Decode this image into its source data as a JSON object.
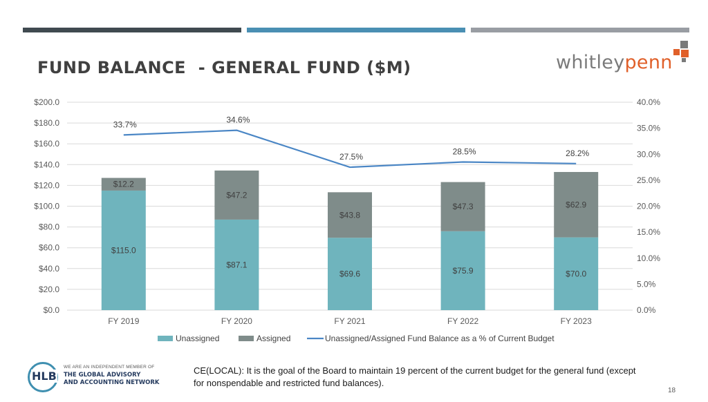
{
  "header": {
    "title": "FUND BALANCE  - GENERAL FUND ($M)",
    "bars": [
      {
        "color": "#404a50"
      },
      {
        "color": "#4a8fb3"
      },
      {
        "color": "#999da3"
      }
    ]
  },
  "logo": {
    "text_part1": "whitley",
    "text_part2": "penn",
    "color_part1": "#7a7a7a",
    "color_part2": "#e0602a",
    "square_colors": [
      "#e0602a",
      "#7a7a7a"
    ]
  },
  "chart_data": {
    "type": "bar",
    "stacked": true,
    "categories": [
      "FY 2019",
      "FY 2020",
      "FY 2021",
      "FY 2022",
      "FY 2023"
    ],
    "series": [
      {
        "name": "Unassigned",
        "type": "bar",
        "axis": "left",
        "color": "#6fb4bd",
        "values": [
          115.0,
          87.1,
          69.6,
          75.9,
          70.0
        ],
        "labels": [
          "$115.0",
          "$87.1",
          "$69.6",
          "$75.9",
          "$70.0"
        ]
      },
      {
        "name": "Assigned",
        "type": "bar",
        "axis": "left",
        "color": "#7f8c8a",
        "values": [
          12.2,
          47.2,
          43.8,
          47.3,
          62.9
        ],
        "labels": [
          "$12.2",
          "$47.2",
          "$43.8",
          "$47.3",
          "$62.9"
        ]
      },
      {
        "name": "Unassigned/Assigned Fund Balance as a % of Current Budget",
        "type": "line",
        "axis": "right",
        "color": "#4a86c5",
        "values": [
          33.7,
          34.6,
          27.5,
          28.5,
          28.2
        ],
        "labels": [
          "33.7%",
          "34.6%",
          "27.5%",
          "28.5%",
          "28.2%"
        ]
      }
    ],
    "y_left": {
      "min": 0,
      "max": 200,
      "step": 20,
      "tick_labels": [
        "$0.0",
        "$20.0",
        "$40.0",
        "$60.0",
        "$80.0",
        "$100.0",
        "$120.0",
        "$140.0",
        "$160.0",
        "$180.0",
        "$200.0"
      ]
    },
    "y_right": {
      "min": 0,
      "max": 40,
      "step": 5,
      "tick_labels": [
        "0.0%",
        "5.0%",
        "10.0%",
        "15.0%",
        "20.0%",
        "25.0%",
        "30.0%",
        "35.0%",
        "40.0%"
      ]
    },
    "grid": true,
    "legend_position": "bottom",
    "gridline_color": "#d9d9d9"
  },
  "footer": {
    "hlb": {
      "mark": "HLB",
      "line1": "WE ARE AN INDEPENDENT MEMBER OF",
      "line2": "THE GLOBAL ADVISORY",
      "line3": "AND ACCOUNTING NETWORK"
    },
    "note": " CE(LOCAL):  It is the goal of the Board to maintain 19 percent of the current budget for the general fund (except for nonspendable and restricted fund balances).",
    "page_number": "18"
  }
}
